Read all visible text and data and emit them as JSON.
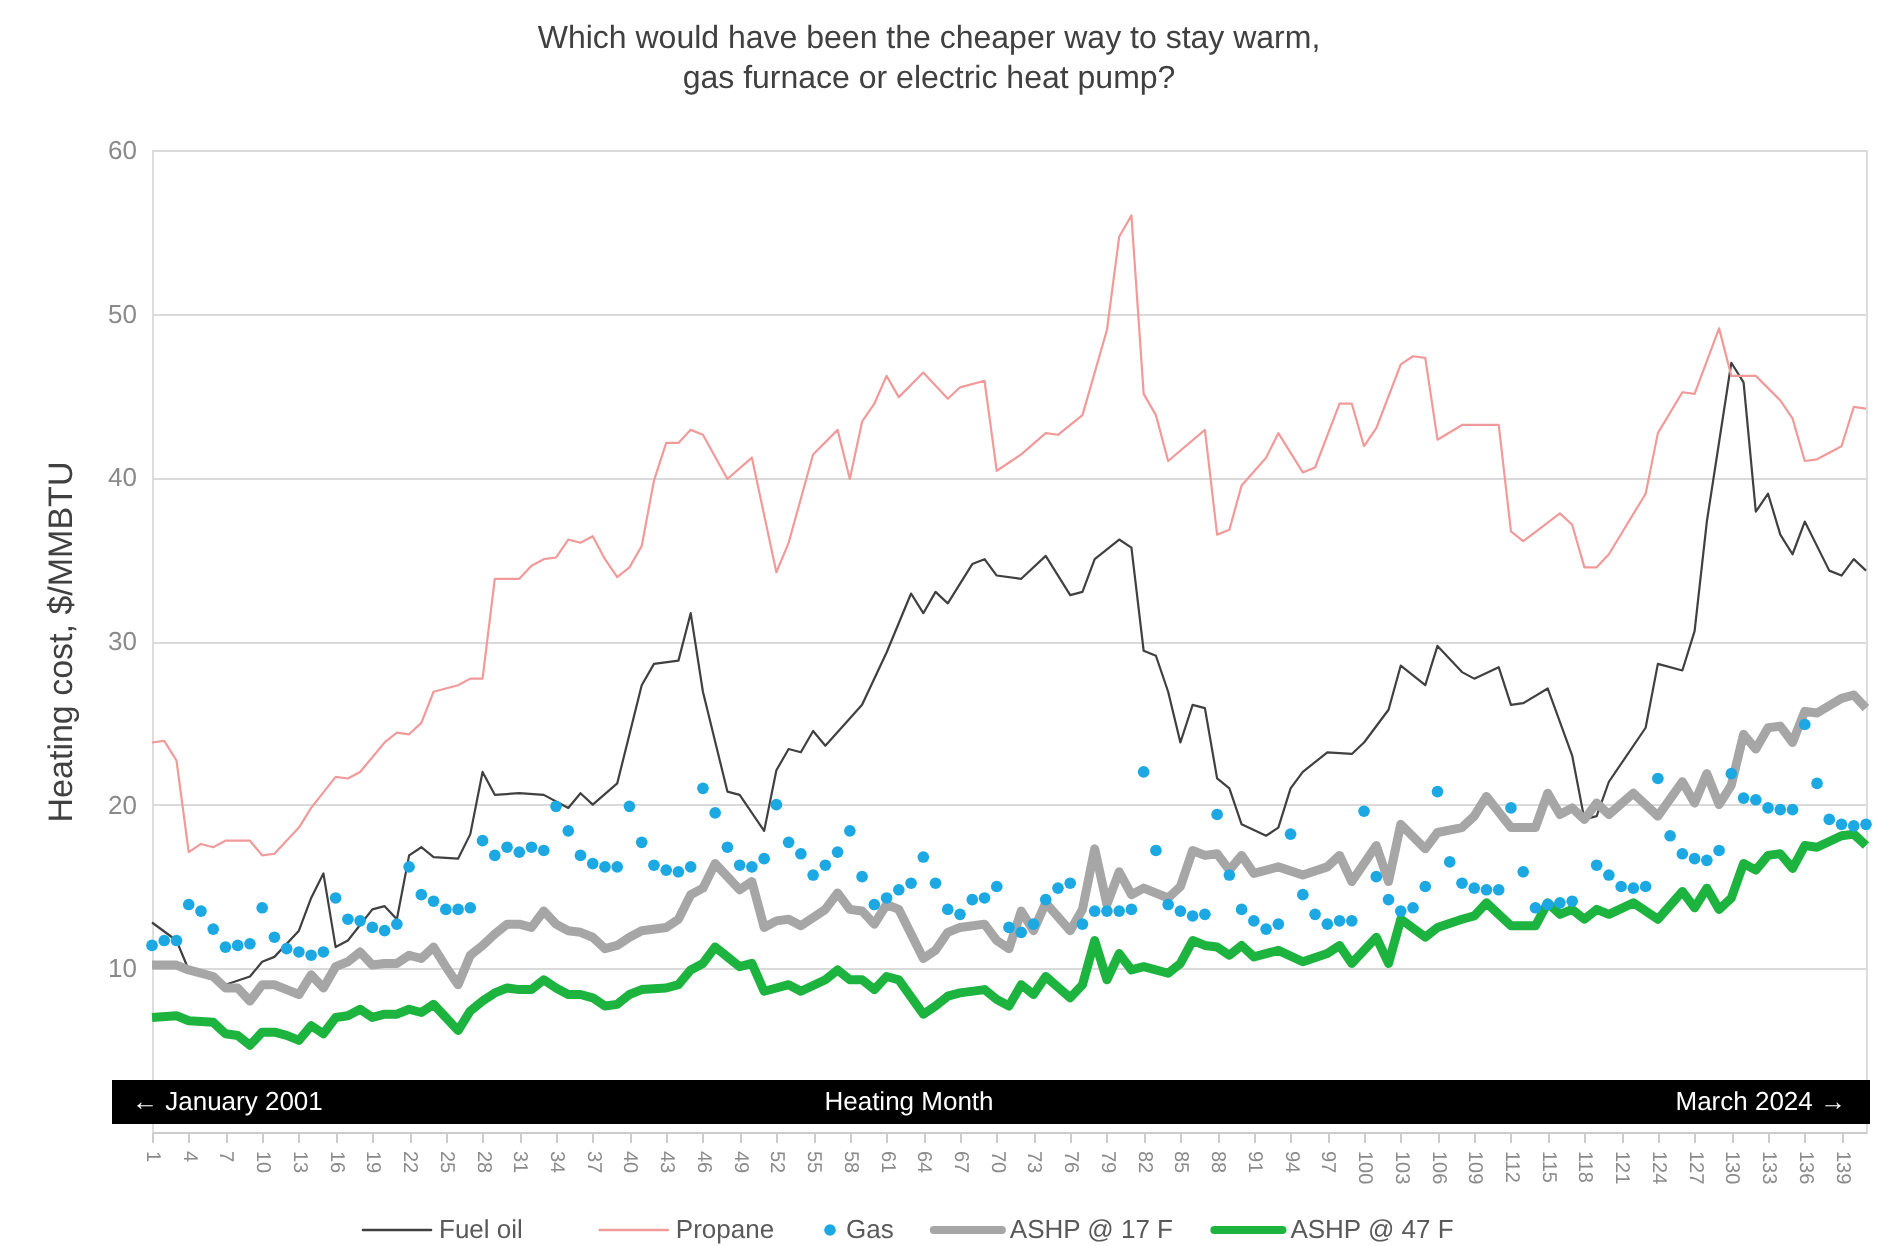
{
  "chart_data": {
    "type": "line",
    "title": "Which would have been the cheaper way to stay warm,\ngas furnace or electric heat pump?",
    "xlabel": "Heating Month",
    "ylabel": "Heating cost, $/MMBTU",
    "annotations": [
      "← January 2001",
      "March 2024 →"
    ],
    "xlim": [
      1,
      141
    ],
    "xticks": [
      1,
      4,
      7,
      10,
      13,
      16,
      19,
      22,
      25,
      28,
      31,
      34,
      37,
      40,
      43,
      46,
      49,
      52,
      55,
      58,
      61,
      64,
      67,
      70,
      73,
      76,
      79,
      82,
      85,
      88,
      91,
      94,
      97,
      100,
      103,
      106,
      109,
      112,
      115,
      118,
      121,
      124,
      127,
      130,
      133,
      136,
      139
    ],
    "ylim": [
      0,
      60
    ],
    "yticks": [
      10,
      20,
      30,
      40,
      50,
      60
    ],
    "grid": "y",
    "legend": "bottom",
    "x": [
      1,
      2,
      3,
      4,
      5,
      6,
      7,
      8,
      9,
      10,
      11,
      12,
      13,
      14,
      15,
      16,
      17,
      18,
      19,
      20,
      21,
      22,
      23,
      24,
      25,
      26,
      27,
      28,
      29,
      30,
      31,
      32,
      33,
      34,
      35,
      36,
      37,
      38,
      39,
      40,
      41,
      42,
      43,
      44,
      45,
      46,
      47,
      48,
      49,
      50,
      51,
      52,
      53,
      54,
      55,
      56,
      57,
      58,
      59,
      60,
      61,
      62,
      63,
      64,
      65,
      66,
      67,
      68,
      69,
      70,
      71,
      72,
      73,
      74,
      75,
      76,
      77,
      78,
      79,
      80,
      81,
      82,
      83,
      84,
      85,
      86,
      87,
      88,
      89,
      90,
      91,
      92,
      93,
      94,
      95,
      96,
      97,
      98,
      99,
      100,
      101,
      102,
      103,
      104,
      105,
      106,
      107,
      108,
      109,
      110,
      111,
      112,
      113,
      114,
      115,
      116,
      117,
      118,
      119,
      120,
      121,
      122,
      123,
      124,
      125,
      126,
      127,
      128,
      129,
      130,
      131,
      132,
      133,
      134,
      135,
      136,
      137,
      138,
      139,
      140,
      141
    ],
    "series": [
      {
        "name": "Fuel oil",
        "color": "#404040",
        "line_style": "solid",
        "x": [
          1,
          3,
          4,
          5,
          7,
          9,
          10,
          11,
          13,
          14,
          15,
          16,
          17,
          19,
          20,
          21,
          22,
          23,
          24,
          26,
          27,
          28,
          29,
          31,
          33,
          35,
          36,
          37,
          39,
          41,
          42,
          44,
          45,
          46,
          48,
          49,
          51,
          52,
          53,
          54,
          55,
          56,
          59,
          61,
          63,
          64,
          65,
          66,
          68,
          69,
          70,
          72,
          74,
          76,
          77,
          78,
          80,
          81,
          82,
          83,
          84,
          85,
          86,
          87,
          88,
          89,
          90,
          92,
          93,
          94,
          95,
          97,
          99,
          100,
          102,
          103,
          105,
          106,
          108,
          109,
          111,
          112,
          113,
          115,
          117,
          118,
          119,
          120,
          123,
          124,
          126,
          127,
          128,
          130,
          131,
          132,
          133,
          134,
          135,
          136,
          138,
          139,
          140,
          141
        ],
        "values": [
          12.8,
          11.7,
          9.9,
          9.6,
          9.0,
          9.5,
          10.4,
          10.7,
          12.3,
          14.3,
          15.8,
          11.3,
          11.7,
          13.6,
          13.8,
          13.0,
          16.9,
          17.4,
          16.8,
          16.7,
          18.2,
          22.0,
          20.6,
          20.7,
          20.6,
          19.8,
          20.7,
          20.0,
          21.3,
          27.3,
          28.6,
          28.8,
          31.7,
          26.9,
          20.8,
          20.6,
          18.4,
          22.1,
          23.4,
          23.2,
          24.5,
          23.6,
          26.1,
          29.3,
          32.9,
          31.7,
          33.0,
          32.3,
          34.7,
          35.0,
          34.0,
          33.8,
          35.2,
          32.8,
          33.0,
          35.0,
          36.2,
          35.7,
          29.4,
          29.1,
          26.9,
          23.8,
          26.1,
          25.9,
          21.6,
          21.0,
          18.8,
          18.1,
          18.6,
          21.0,
          22.0,
          23.2,
          23.1,
          23.8,
          25.8,
          28.5,
          27.3,
          29.7,
          28.1,
          27.7,
          28.4,
          26.1,
          26.2,
          27.1,
          23.0,
          19.1,
          19.3,
          21.4,
          24.7,
          28.6,
          28.2,
          30.6,
          37.3,
          47.0,
          45.8,
          37.9,
          39.0,
          36.5,
          35.3,
          37.3,
          34.3,
          34.0,
          35.0,
          34.3
        ]
      },
      {
        "name": "Propane",
        "color": "#f19a9a",
        "line_style": "solid",
        "x": [
          1,
          2,
          3,
          4,
          5,
          6,
          7,
          9,
          10,
          11,
          13,
          14,
          16,
          17,
          18,
          20,
          21,
          22,
          23,
          24,
          26,
          27,
          28,
          29,
          31,
          32,
          33,
          34,
          35,
          36,
          37,
          38,
          39,
          40,
          41,
          42,
          43,
          44,
          45,
          46,
          48,
          50,
          52,
          53,
          55,
          57,
          58,
          59,
          60,
          61,
          62,
          64,
          66,
          67,
          69,
          70,
          72,
          74,
          75,
          77,
          79,
          80,
          81,
          82,
          83,
          84,
          87,
          88,
          89,
          90,
          92,
          93,
          95,
          96,
          98,
          99,
          100,
          101,
          103,
          104,
          105,
          106,
          108,
          111,
          112,
          113,
          116,
          117,
          118,
          119,
          120,
          123,
          124,
          126,
          127,
          129,
          130,
          132,
          134,
          135,
          136,
          137,
          139,
          140,
          141
        ],
        "values": [
          23.8,
          23.9,
          22.7,
          17.1,
          17.6,
          17.4,
          17.8,
          17.8,
          16.9,
          17.0,
          18.6,
          19.8,
          21.7,
          21.6,
          22.0,
          23.8,
          24.4,
          24.3,
          25.0,
          26.9,
          27.3,
          27.7,
          27.7,
          33.8,
          33.8,
          34.6,
          35.0,
          35.1,
          36.2,
          36.0,
          36.4,
          35.0,
          33.9,
          34.5,
          35.8,
          39.8,
          42.1,
          42.1,
          42.9,
          42.6,
          39.9,
          41.2,
          34.2,
          36.0,
          41.4,
          42.9,
          39.9,
          43.4,
          44.5,
          46.2,
          44.9,
          46.4,
          44.8,
          45.5,
          45.9,
          40.4,
          41.4,
          42.7,
          42.6,
          43.8,
          49.0,
          54.7,
          56.0,
          45.1,
          43.8,
          41.0,
          42.9,
          36.5,
          36.8,
          39.5,
          41.2,
          42.7,
          40.3,
          40.6,
          44.5,
          44.5,
          41.9,
          43.0,
          46.9,
          47.4,
          47.3,
          42.3,
          43.2,
          43.2,
          36.7,
          36.1,
          37.8,
          37.1,
          34.5,
          34.5,
          35.3,
          39.0,
          42.7,
          45.2,
          45.1,
          49.1,
          46.2,
          46.2,
          44.7,
          43.6,
          41.0,
          41.1,
          41.9,
          44.3,
          44.2
        ]
      },
      {
        "name": "Gas",
        "type": "scatter",
        "color": "#1ca8e3",
        "marker": "circle",
        "values": [
          11.4,
          11.7,
          11.7,
          13.9,
          13.5,
          12.4,
          11.3,
          11.4,
          11.5,
          13.7,
          11.9,
          11.2,
          11.0,
          10.8,
          11.0,
          14.3,
          13.0,
          12.9,
          12.5,
          12.3,
          12.7,
          16.2,
          14.5,
          14.1,
          13.6,
          13.6,
          13.7,
          17.8,
          16.9,
          17.4,
          17.1,
          17.4,
          17.2,
          19.9,
          18.4,
          16.9,
          16.4,
          16.2,
          16.2,
          19.9,
          17.7,
          16.3,
          16.0,
          15.9,
          16.2,
          21.0,
          19.5,
          17.4,
          16.3,
          16.2,
          16.7,
          20.0,
          17.7,
          17.0,
          15.7,
          16.3,
          17.1,
          18.4,
          15.6,
          13.9,
          14.3,
          14.8,
          15.2,
          16.8,
          15.2,
          13.6,
          13.3,
          14.2,
          14.3,
          15.0,
          12.5,
          12.2,
          12.7,
          14.2,
          14.9,
          15.2,
          12.7,
          13.5,
          13.5,
          13.5,
          13.6,
          22.0,
          17.2,
          13.9,
          13.5,
          13.2,
          13.3,
          19.4,
          15.7,
          13.6,
          12.9,
          12.4,
          12.7,
          18.2,
          14.5,
          13.3,
          12.7,
          12.9,
          12.9,
          19.6,
          15.6,
          14.2,
          13.5,
          13.7,
          15.0,
          20.8,
          16.5,
          15.2,
          14.9,
          14.8,
          14.8,
          19.8,
          15.9,
          13.7,
          13.9,
          14.0,
          14.1,
          null,
          16.3,
          15.7,
          15.0,
          14.9,
          15.0,
          21.6,
          18.1,
          17.0,
          16.7,
          16.6,
          17.2,
          21.9,
          20.4,
          20.3,
          19.8,
          19.7,
          19.7,
          24.9,
          21.3,
          19.1,
          18.8,
          18.7,
          18.8
        ]
      },
      {
        "name": "ASHP @ 17 F",
        "color": "#a6a6a6",
        "line_style": "solid",
        "x": [
          1,
          3,
          4,
          6,
          7,
          8,
          9,
          10,
          11,
          12,
          13,
          14,
          15,
          16,
          17,
          18,
          19,
          20,
          21,
          22,
          23,
          24,
          25,
          26,
          27,
          28,
          29,
          30,
          31,
          32,
          33,
          34,
          35,
          36,
          37,
          38,
          39,
          40,
          41,
          43,
          44,
          45,
          46,
          47,
          48,
          49,
          50,
          51,
          52,
          53,
          54,
          56,
          57,
          58,
          59,
          60,
          61,
          62,
          64,
          65,
          66,
          67,
          69,
          70,
          71,
          72,
          73,
          74,
          76,
          77,
          78,
          79,
          80,
          81,
          82,
          84,
          85,
          86,
          87,
          88,
          89,
          90,
          91,
          93,
          95,
          97,
          98,
          99,
          101,
          102,
          103,
          105,
          106,
          108,
          109,
          110,
          112,
          114,
          115,
          116,
          117,
          118,
          119,
          120,
          122,
          124,
          126,
          127,
          128,
          129,
          130,
          131,
          132,
          133,
          134,
          135,
          136,
          137,
          139,
          140,
          141
        ],
        "values": [
          10.2,
          10.2,
          9.9,
          9.5,
          8.8,
          8.8,
          8.0,
          9.0,
          9.0,
          8.7,
          8.4,
          9.6,
          8.8,
          10.1,
          10.4,
          11.0,
          10.2,
          10.3,
          10.3,
          10.8,
          10.6,
          11.3,
          10.1,
          9.0,
          10.8,
          11.4,
          12.1,
          12.7,
          12.7,
          12.5,
          13.5,
          12.7,
          12.3,
          12.2,
          11.9,
          11.2,
          11.4,
          11.9,
          12.3,
          12.5,
          13.0,
          14.5,
          14.9,
          16.4,
          15.6,
          14.8,
          15.3,
          12.5,
          12.9,
          13.0,
          12.6,
          13.6,
          14.6,
          13.6,
          13.5,
          12.7,
          13.9,
          13.6,
          10.6,
          11.1,
          12.2,
          12.5,
          12.7,
          11.7,
          11.2,
          13.5,
          12.3,
          14.0,
          12.3,
          13.6,
          17.3,
          13.9,
          15.9,
          14.5,
          14.9,
          14.3,
          15.0,
          17.2,
          16.9,
          17.0,
          16.0,
          16.9,
          15.8,
          16.2,
          15.7,
          16.2,
          16.9,
          15.3,
          17.5,
          15.3,
          18.8,
          17.3,
          18.3,
          18.6,
          19.3,
          20.5,
          18.6,
          18.6,
          20.7,
          19.4,
          19.8,
          19.1,
          20.1,
          19.4,
          20.7,
          19.3,
          21.4,
          20.1,
          21.9,
          20.0,
          21.2,
          24.3,
          23.4,
          24.7,
          24.8,
          23.8,
          25.7,
          25.6,
          26.5,
          26.7,
          25.9
        ]
      },
      {
        "name": "ASHP @ 47 F",
        "color": "#1db33f",
        "line_style": "solid",
        "x": [
          1,
          3,
          4,
          6,
          7,
          8,
          9,
          10,
          11,
          12,
          13,
          14,
          15,
          16,
          17,
          18,
          19,
          20,
          21,
          22,
          23,
          24,
          25,
          26,
          27,
          28,
          29,
          30,
          31,
          32,
          33,
          34,
          35,
          36,
          37,
          38,
          39,
          40,
          41,
          43,
          44,
          45,
          46,
          47,
          48,
          49,
          50,
          51,
          52,
          53,
          54,
          56,
          57,
          58,
          59,
          60,
          61,
          62,
          64,
          65,
          66,
          67,
          69,
          70,
          71,
          72,
          73,
          74,
          76,
          77,
          78,
          79,
          80,
          81,
          82,
          84,
          85,
          86,
          87,
          88,
          89,
          90,
          91,
          93,
          95,
          97,
          98,
          99,
          101,
          102,
          103,
          105,
          106,
          108,
          109,
          110,
          112,
          114,
          115,
          116,
          117,
          118,
          119,
          120,
          122,
          124,
          126,
          127,
          128,
          129,
          130,
          131,
          132,
          133,
          134,
          135,
          136,
          137,
          139,
          140,
          141
        ],
        "values": [
          7.0,
          7.1,
          6.8,
          6.7,
          6.0,
          5.9,
          5.3,
          6.1,
          6.1,
          5.9,
          5.6,
          6.5,
          6.0,
          7.0,
          7.1,
          7.5,
          7.0,
          7.2,
          7.2,
          7.5,
          7.3,
          7.8,
          7.0,
          6.2,
          7.4,
          8.0,
          8.5,
          8.8,
          8.7,
          8.7,
          9.3,
          8.8,
          8.4,
          8.4,
          8.2,
          7.7,
          7.8,
          8.4,
          8.7,
          8.8,
          9.0,
          9.9,
          10.3,
          11.3,
          10.7,
          10.1,
          10.3,
          8.6,
          8.8,
          9.0,
          8.6,
          9.3,
          9.9,
          9.3,
          9.3,
          8.7,
          9.5,
          9.3,
          7.2,
          7.7,
          8.3,
          8.5,
          8.7,
          8.1,
          7.7,
          9.0,
          8.4,
          9.5,
          8.2,
          9.0,
          11.7,
          9.3,
          10.9,
          9.9,
          10.1,
          9.7,
          10.3,
          11.7,
          11.4,
          11.3,
          10.8,
          11.4,
          10.7,
          11.1,
          10.4,
          10.9,
          11.4,
          10.3,
          11.9,
          10.3,
          13.0,
          11.9,
          12.5,
          13.0,
          13.2,
          14.0,
          12.6,
          12.6,
          14.0,
          13.3,
          13.6,
          13.0,
          13.6,
          13.3,
          14.0,
          13.0,
          14.7,
          13.7,
          14.9,
          13.6,
          14.3,
          16.4,
          16.0,
          16.9,
          17.0,
          16.1,
          17.5,
          17.4,
          18.1,
          18.2,
          17.5
        ]
      }
    ]
  }
}
